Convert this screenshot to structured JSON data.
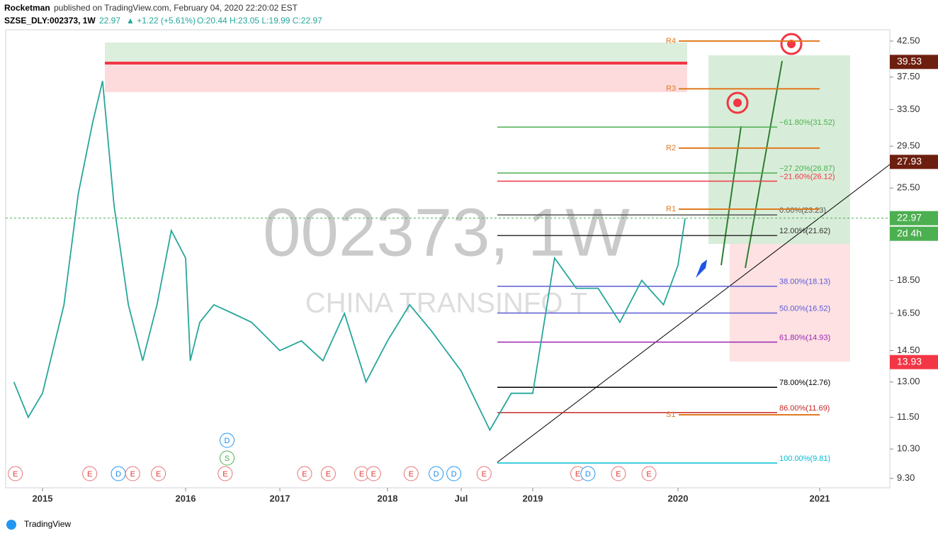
{
  "header": {
    "author": "Rocketman",
    "published": "published on TradingView.com, February 04, 2020 22:20:02 EST",
    "symbol": "SZSE_DLY:002373, 1W",
    "last": "22.97",
    "change": "▲ +1.22 (+5.61%)",
    "ohlc": "O:20.44 H:23.05 L:19.99 C:22.97"
  },
  "chart_data": {
    "type": "line",
    "log": true,
    "watermark": "002373, 1W",
    "watermark_sub": "CHINA TRANSINFO T",
    "ylim": [
      9.0,
      44.2
    ],
    "yticks": [
      {
        "value": 42.5,
        "label": "42.50"
      },
      {
        "value": 37.5,
        "label": "37.50"
      },
      {
        "value": 33.5,
        "label": "33.50"
      },
      {
        "value": 29.5,
        "label": "29.50"
      },
      {
        "value": 25.5,
        "label": "25.50"
      },
      {
        "value": 18.5,
        "label": "18.50"
      },
      {
        "value": 16.5,
        "label": "16.50"
      },
      {
        "value": 14.5,
        "label": "14.50"
      },
      {
        "value": 13,
        "label": "13.00"
      },
      {
        "value": 11.5,
        "label": "11.50"
      },
      {
        "value": 10.3,
        "label": "10.30"
      },
      {
        "value": 9.3,
        "label": "9.30"
      }
    ],
    "xticks": [
      2015,
      2016,
      2017,
      2018,
      {
        "value": 2018.5,
        "label": "Jul"
      },
      2019,
      2020,
      2021
    ],
    "series": [
      {
        "name": "SZSE_DLY:002373",
        "color": "#26a69a",
        "x": [
          2014.8,
          2014.9,
          2015.0,
          2015.15,
          2015.25,
          2015.35,
          2015.42,
          2015.5,
          2015.6,
          2015.7,
          2015.8,
          2015.9,
          2016.0,
          2016.05,
          2016.15,
          2016.3,
          2016.5,
          2016.7,
          2017.0,
          2017.2,
          2017.4,
          2017.6,
          2017.8,
          2018.0,
          2018.15,
          2018.3,
          2018.5,
          2018.7,
          2018.85,
          2019.0,
          2019.15,
          2019.3,
          2019.45,
          2019.6,
          2019.75,
          2019.9,
          2020.0,
          2020.05
        ],
        "values": [
          13.0,
          11.5,
          12.5,
          17,
          25,
          32,
          37,
          24,
          17,
          14,
          17,
          22,
          20,
          14,
          16,
          17,
          16.5,
          16,
          14.5,
          15,
          14,
          16.5,
          13,
          15,
          17,
          15.5,
          13.5,
          11,
          12.5,
          12.5,
          20,
          18,
          18,
          16,
          18.5,
          17,
          19.5,
          22.97
        ]
      }
    ],
    "fib_levels": [
      {
        "value": 31.52,
        "label": "−61.80%(31.52)",
        "color": "#4caf50"
      },
      {
        "value": 26.87,
        "label": "−27.20%(26.87)",
        "color": "#4caf50"
      },
      {
        "value": 26.12,
        "label": "−21.60%(26.12)",
        "color": "#f23645"
      },
      {
        "value": 23.23,
        "label": "0.00%(23.23)",
        "color": "#555555"
      },
      {
        "value": 21.62,
        "label": "12.00%(21.62)",
        "color": "#333333"
      },
      {
        "value": 18.13,
        "label": "38.00%(18.13)",
        "color": "#5b5bd6"
      },
      {
        "value": 16.52,
        "label": "50.00%(16.52)",
        "color": "#5b5bd6"
      },
      {
        "value": 14.93,
        "label": "61.80%(14.93)",
        "color": "#9c27b0"
      },
      {
        "value": 12.76,
        "label": "78.00%(12.76)",
        "color": "#000000"
      },
      {
        "value": 11.69,
        "label": "86.00%(11.69)",
        "color": "#c62828"
      },
      {
        "value": 9.81,
        "label": "100.00%(9.81)",
        "color": "#00bcd4"
      }
    ],
    "pivots": [
      {
        "value": 42.5,
        "label": "R4"
      },
      {
        "value": 36.0,
        "label": "R3"
      },
      {
        "value": 29.3,
        "label": "R2"
      },
      {
        "value": 23.7,
        "label": "R1"
      },
      {
        "value": 11.6,
        "label": "S1"
      }
    ],
    "pivot_color": "#e07a1f",
    "price_labels": [
      {
        "value": 39.53,
        "color": "#6d1f0f"
      },
      {
        "value": 27.93,
        "color": "#6d1f0f"
      },
      {
        "value": 22.97,
        "color": "#4caf50"
      },
      {
        "value": 13.93,
        "color": "#f23645"
      }
    ],
    "countdown": "2d 4h",
    "events": [
      {
        "x": 2014.81,
        "label": "E"
      },
      {
        "x": 2015.33,
        "label": "E"
      },
      {
        "x": 2015.53,
        "label": "D"
      },
      {
        "x": 2015.63,
        "label": "E"
      },
      {
        "x": 2015.81,
        "label": "E"
      },
      {
        "x": 2016.42,
        "label": "E"
      },
      {
        "x": 2017.23,
        "label": "E"
      },
      {
        "x": 2017.45,
        "label": "E"
      },
      {
        "x": 2017.76,
        "label": "E"
      },
      {
        "x": 2017.87,
        "label": "E"
      },
      {
        "x": 2018.16,
        "label": "E"
      },
      {
        "x": 2018.33,
        "label": "D"
      },
      {
        "x": 2018.45,
        "label": "D"
      },
      {
        "x": 2018.66,
        "label": "E"
      },
      {
        "x": 2019.31,
        "label": "E"
      },
      {
        "x": 2019.38,
        "label": "D"
      },
      {
        "x": 2019.59,
        "label": "E"
      },
      {
        "x": 2019.8,
        "label": "E"
      }
    ],
    "dividend_events": [
      {
        "x": 2016.44,
        "label": "D"
      },
      {
        "x": 2016.44,
        "label": "S"
      }
    ]
  },
  "footer": {
    "brand": "TradingView"
  }
}
